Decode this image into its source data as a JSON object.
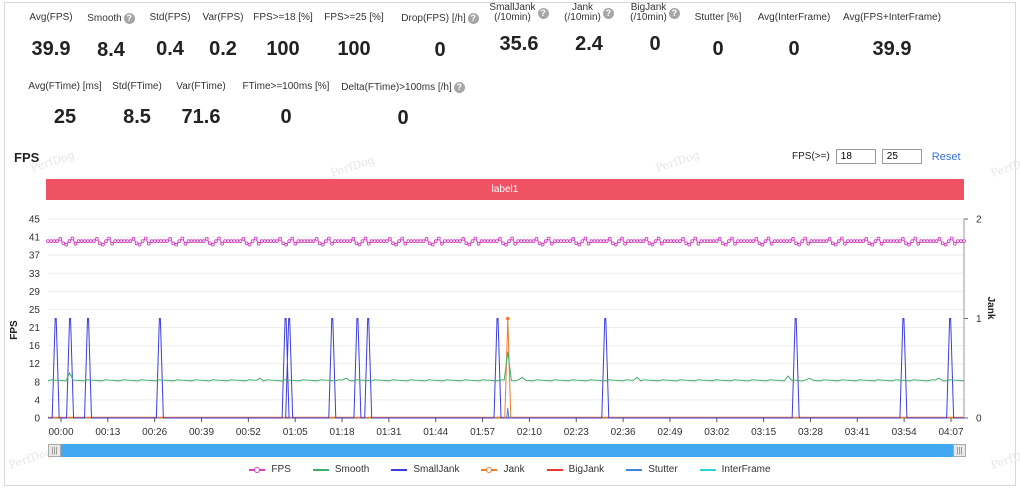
{
  "metrics_row1": [
    {
      "label": "Avg(FPS)",
      "value": "39.9",
      "help": false
    },
    {
      "label": "Smooth",
      "value": "8.4",
      "help": true
    },
    {
      "label": "Std(FPS)",
      "value": "0.4",
      "help": false
    },
    {
      "label": "Var(FPS)",
      "value": "0.2",
      "help": false
    },
    {
      "label": "FPS>=18 [%]",
      "value": "100",
      "help": false
    },
    {
      "label": "FPS>=25 [%]",
      "value": "100",
      "help": false
    },
    {
      "label": "Drop(FPS) [/h]",
      "value": "0",
      "help": true
    },
    {
      "label": "SmallJank\n(/10min)",
      "value": "35.6",
      "help": true
    },
    {
      "label": "Jank\n(/10min)",
      "value": "2.4",
      "help": true
    },
    {
      "label": "BigJank\n(/10min)",
      "value": "0",
      "help": true
    },
    {
      "label": "Stutter [%]",
      "value": "0",
      "help": false
    },
    {
      "label": "Avg(InterFrame)",
      "value": "0",
      "help": false
    },
    {
      "label": "Avg(FPS+InterFrame)",
      "value": "39.9",
      "help": false
    }
  ],
  "metrics_row2": [
    {
      "label": "Avg(FTime) [ms]",
      "value": "25",
      "help": false
    },
    {
      "label": "Std(FTime)",
      "value": "8.5",
      "help": false
    },
    {
      "label": "Var(FTime)",
      "value": "71.6",
      "help": false
    },
    {
      "label": "FTime>=100ms [%]",
      "value": "0",
      "help": false
    },
    {
      "label": "Delta(FTime)>100ms [/h]",
      "value": "0",
      "help": true
    }
  ],
  "help_glyph": "?",
  "section_title": "FPS",
  "fps_threshold": {
    "label": "FPS(>=)",
    "low": "18",
    "high": "25",
    "reset": "Reset"
  },
  "label_bar": "label1",
  "watermark": "PerfDog",
  "slider": {
    "left_grip": "|||",
    "right_grip": "|||"
  },
  "colors": {
    "fps": "#d23fbf",
    "smooth": "#3db06a",
    "smalljank": "#3b3de0",
    "jank": "#f07b2a",
    "bigjank": "#e83a30",
    "stutter": "#3a86e8",
    "interframe": "#2ed6d6",
    "label_bar": "#ef5262",
    "slider": "#42a8ef"
  },
  "chart_data": {
    "type": "line",
    "ylabel": "FPS",
    "y2label": "Jank",
    "ylim": [
      0,
      45
    ],
    "y2lim": [
      0,
      2
    ],
    "yticks": [
      "0",
      "4",
      "8",
      "12",
      "16",
      "21",
      "25",
      "29",
      "33",
      "37",
      "41",
      "45"
    ],
    "y2ticks": [
      "0",
      "1",
      "2"
    ],
    "xticks": [
      "00:00",
      "00:13",
      "00:26",
      "00:39",
      "00:52",
      "01:05",
      "01:18",
      "01:31",
      "01:44",
      "01:57",
      "02:10",
      "02:23",
      "02:36",
      "02:49",
      "03:02",
      "03:15",
      "03:28",
      "03:41",
      "03:54",
      "04:07"
    ],
    "x_range_seconds": [
      0,
      255
    ],
    "fps_value": 40,
    "smooth_value": 8.4,
    "smooth_bumps": [
      {
        "t": 6,
        "v": 10.2
      },
      {
        "t": 59,
        "v": 9
      },
      {
        "t": 83,
        "v": 9
      },
      {
        "t": 132,
        "v": 9.2
      },
      {
        "t": 164,
        "v": 9.2
      },
      {
        "t": 206,
        "v": 9.5
      },
      {
        "t": 212,
        "v": 9
      },
      {
        "t": 248,
        "v": 9
      }
    ],
    "smalljank_spikes_seconds": [
      2,
      6,
      11,
      31,
      66,
      67,
      79,
      86,
      89,
      125,
      155,
      208,
      238,
      251
    ],
    "jank_spikes_seconds": [
      128
    ],
    "legend_groups": [
      "Stutter",
      "InterFrame"
    ],
    "series": [
      {
        "name": "FPS",
        "color": "#d23fbf",
        "marker": true
      },
      {
        "name": "Smooth",
        "color": "#3db06a",
        "marker": false
      },
      {
        "name": "SmallJank",
        "color": "#3b3de0",
        "marker": false
      },
      {
        "name": "Jank",
        "color": "#f07b2a",
        "marker": true
      },
      {
        "name": "BigJank",
        "color": "#e83a30",
        "marker": false
      },
      {
        "name": "Stutter",
        "color": "#3a86e8",
        "marker": false
      },
      {
        "name": "InterFrame",
        "color": "#2ed6d6",
        "marker": false
      }
    ]
  }
}
